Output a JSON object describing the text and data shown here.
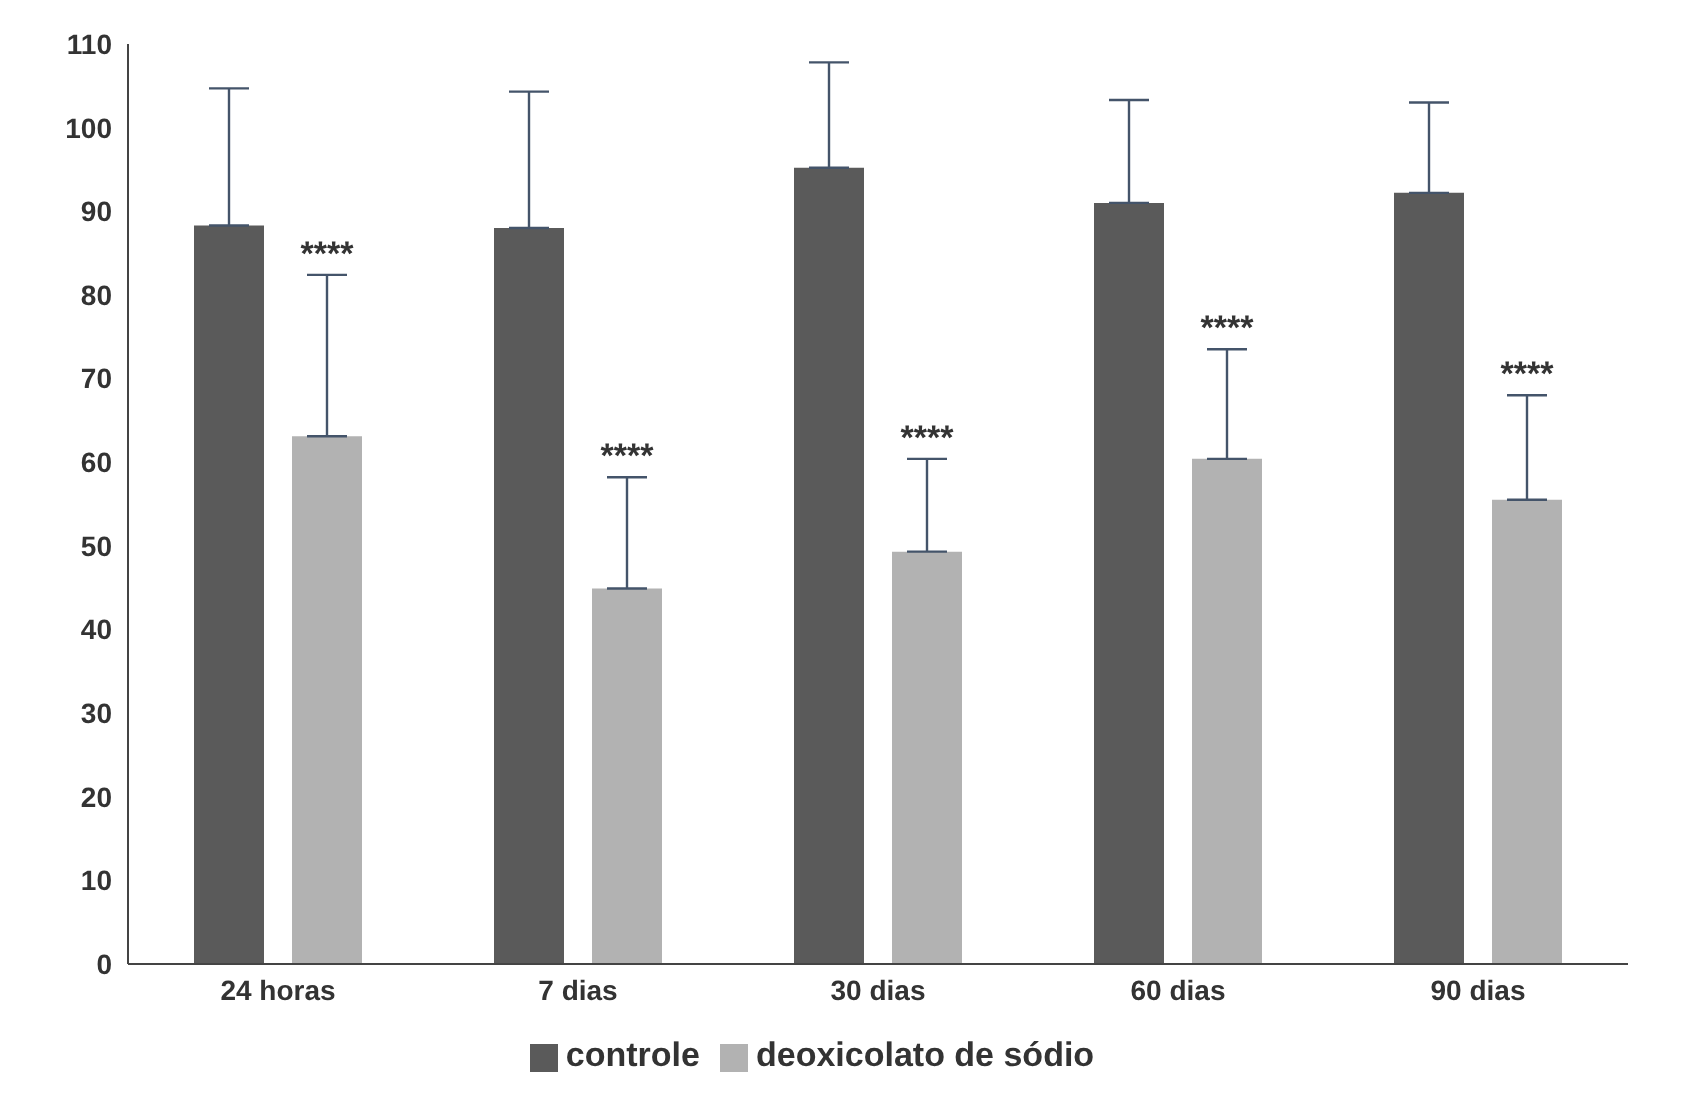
{
  "chart_data": {
    "type": "bar",
    "categories": [
      "24 horas",
      "7 dias",
      "30 dias",
      "60 dias",
      "90 dias"
    ],
    "series": [
      {
        "name": "controle",
        "color": "#5a5a5a",
        "values": [
          88.3,
          88,
          95.2,
          91,
          92.2
        ],
        "errors": [
          [
            88.3,
            104.7
          ],
          [
            88,
            104.3
          ],
          [
            95.2,
            107.8
          ],
          [
            91,
            103.3
          ],
          [
            92.2,
            103
          ]
        ]
      },
      {
        "name": "deoxicolato de sódio",
        "color": "#b2b2b2",
        "values": [
          63.1,
          44.9,
          49.3,
          60.4,
          55.5
        ],
        "errors": [
          [
            63.1,
            82.4
          ],
          [
            44.9,
            58.2
          ],
          [
            49.3,
            60.4
          ],
          [
            60.4,
            73.5
          ],
          [
            55.5,
            68
          ]
        ]
      }
    ],
    "annotations": [
      "****",
      "****",
      "****",
      "****",
      "****"
    ],
    "ylim": [
      0,
      110
    ],
    "yticks": [
      0,
      10,
      20,
      30,
      40,
      50,
      60,
      70,
      80,
      90,
      100,
      110
    ],
    "grid": false,
    "legend": "bottom"
  }
}
